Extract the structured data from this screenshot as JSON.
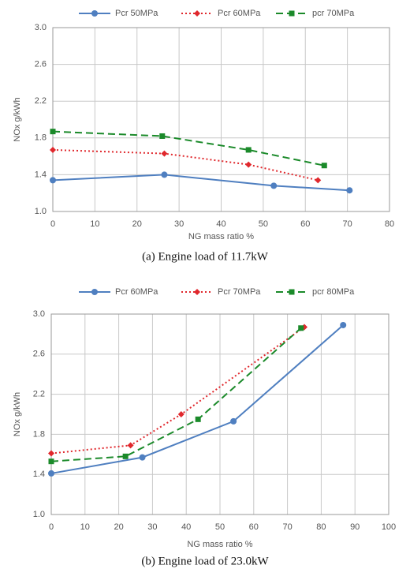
{
  "chart_data": [
    {
      "type": "line",
      "caption": "(a) Engine load of 11.7kW",
      "x_label": "NG mass ratio  %",
      "y_label": "NOx    g/kWh",
      "xlim": [
        0,
        80
      ],
      "xticks": [
        0,
        10,
        20,
        30,
        40,
        50,
        60,
        70,
        80
      ],
      "ylim": [
        1.0,
        3.0
      ],
      "yticks": [
        {
          "value": 1.0,
          "label": "1.0"
        },
        1.4,
        1.8,
        2.2,
        2.6,
        {
          "value": 3.0,
          "label": "3.0"
        }
      ],
      "grid": true,
      "legend": "top",
      "series": [
        {
          "name": "Pcr 50MPa",
          "color": "#4f7fc0",
          "marker": "circle",
          "dash": "solid",
          "x": [
            0,
            26.5,
            52.5,
            70.5
          ],
          "values": [
            1.34,
            1.4,
            1.28,
            1.23
          ]
        },
        {
          "name": "Pcr 60MPa",
          "color": "#e0282d",
          "marker": "diamond",
          "dash": "dotted",
          "x": [
            0,
            26.5,
            46.5,
            63
          ],
          "values": [
            1.67,
            1.63,
            1.51,
            1.34
          ]
        },
        {
          "name": "pcr 70MPa",
          "color": "#1b8a2a",
          "marker": "square",
          "dash": "dashed",
          "x": [
            0,
            26,
            46.5,
            64.5
          ],
          "values": [
            1.87,
            1.82,
            1.67,
            1.5
          ]
        }
      ]
    },
    {
      "type": "line",
      "caption": "(b) Engine load of 23.0kW",
      "x_label": "NG mass ratio  %",
      "y_label": "NOx    g/kWh",
      "xlim": [
        0,
        100
      ],
      "xticks": [
        0,
        10,
        20,
        30,
        40,
        50,
        60,
        70,
        80,
        90,
        100
      ],
      "ylim": [
        1.0,
        3.0
      ],
      "yticks": [
        {
          "value": 1.0,
          "label": "1.0"
        },
        1.4,
        1.8,
        2.2,
        2.6,
        {
          "value": 3.0,
          "label": "3.0"
        }
      ],
      "grid": true,
      "legend": "top",
      "series": [
        {
          "name": "Pcr 60MPa",
          "color": "#4f7fc0",
          "marker": "circle",
          "dash": "solid",
          "x": [
            0,
            27,
            54,
            86.5
          ],
          "values": [
            1.41,
            1.57,
            1.93,
            2.89
          ]
        },
        {
          "name": "Pcr 70MPa",
          "color": "#e0282d",
          "marker": "diamond",
          "dash": "dotted",
          "x": [
            0,
            23.5,
            38.5,
            75
          ],
          "values": [
            1.61,
            1.69,
            2.0,
            2.87
          ]
        },
        {
          "name": "pcr 80MPa",
          "color": "#1b8a2a",
          "marker": "square",
          "dash": "dashed",
          "x": [
            0,
            22,
            43.5,
            74
          ],
          "values": [
            1.53,
            1.58,
            1.95,
            2.86
          ]
        }
      ]
    }
  ]
}
